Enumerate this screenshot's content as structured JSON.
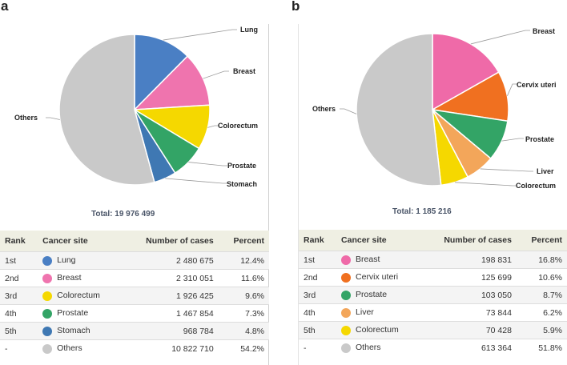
{
  "chart_data": [
    {
      "type": "pie",
      "panel_label": "a",
      "total_label": "Total: 19 976 499",
      "slices": [
        {
          "name": "Lung",
          "value": 12.4,
          "color": "#4a7fc4"
        },
        {
          "name": "Breast",
          "value": 11.6,
          "color": "#ef74ae"
        },
        {
          "name": "Colorectum",
          "value": 9.6,
          "color": "#f5d800"
        },
        {
          "name": "Prostate",
          "value": 7.3,
          "color": "#33a466"
        },
        {
          "name": "Stomach",
          "value": 4.8,
          "color": "#3f78b3"
        },
        {
          "name": "Others",
          "value": 54.2,
          "color": "#c9c9c9"
        }
      ],
      "table": {
        "headers": [
          "Rank",
          "Cancer site",
          "Number of cases",
          "Percent"
        ],
        "rows": [
          {
            "rank": "1st",
            "site": "Lung",
            "cases": "2 480 675",
            "percent": "12.4%",
            "color": "#4a7fc4"
          },
          {
            "rank": "2nd",
            "site": "Breast",
            "cases": "2 310 051",
            "percent": "11.6%",
            "color": "#ef74ae"
          },
          {
            "rank": "3rd",
            "site": "Colorectum",
            "cases": "1 926 425",
            "percent": "9.6%",
            "color": "#f5d800"
          },
          {
            "rank": "4th",
            "site": "Prostate",
            "cases": "1 467 854",
            "percent": "7.3%",
            "color": "#33a466"
          },
          {
            "rank": "5th",
            "site": "Stomach",
            "cases": "968 784",
            "percent": "4.8%",
            "color": "#3f78b3"
          },
          {
            "rank": "-",
            "site": "Others",
            "cases": "10 822 710",
            "percent": "54.2%",
            "color": "#c9c9c9"
          }
        ]
      }
    },
    {
      "type": "pie",
      "panel_label": "b",
      "total_label": "Total: 1 185 216",
      "slices": [
        {
          "name": "Breast",
          "value": 16.8,
          "color": "#ef6aa8"
        },
        {
          "name": "Cervix uteri",
          "value": 10.6,
          "color": "#f07020"
        },
        {
          "name": "Prostate",
          "value": 8.7,
          "color": "#33a466"
        },
        {
          "name": "Liver",
          "value": 6.2,
          "color": "#f3a65a"
        },
        {
          "name": "Colorectum",
          "value": 5.9,
          "color": "#f5d800"
        },
        {
          "name": "Others",
          "value": 51.8,
          "color": "#c9c9c9"
        }
      ],
      "table": {
        "headers": [
          "Rank",
          "Cancer site",
          "Number of cases",
          "Percent"
        ],
        "rows": [
          {
            "rank": "1st",
            "site": "Breast",
            "cases": "198 831",
            "percent": "16.8%",
            "color": "#ef6aa8"
          },
          {
            "rank": "2nd",
            "site": "Cervix uteri",
            "cases": "125 699",
            "percent": "10.6%",
            "color": "#f07020"
          },
          {
            "rank": "3rd",
            "site": "Prostate",
            "cases": "103 050",
            "percent": "8.7%",
            "color": "#33a466"
          },
          {
            "rank": "4th",
            "site": "Liver",
            "cases": "73 844",
            "percent": "6.2%",
            "color": "#f3a65a"
          },
          {
            "rank": "5th",
            "site": "Colorectum",
            "cases": "70 428",
            "percent": "5.9%",
            "color": "#f5d800"
          },
          {
            "rank": "-",
            "site": "Others",
            "cases": "613 364",
            "percent": "51.8%",
            "color": "#c9c9c9"
          }
        ]
      }
    }
  ]
}
